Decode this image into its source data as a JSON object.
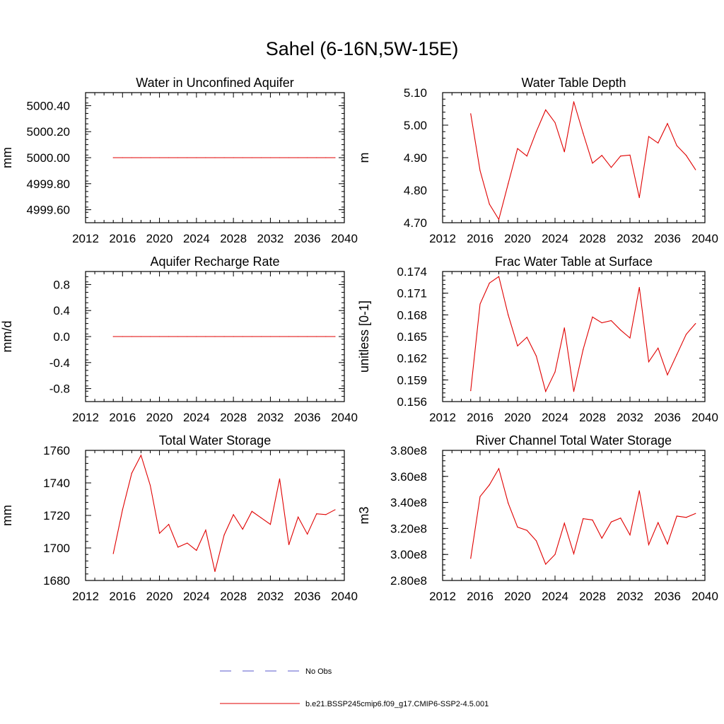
{
  "figure": {
    "title": "Sahel (6-16N,5W-15E)"
  },
  "legend": {
    "items": [
      {
        "label": "No Obs",
        "color": "#5a5acc",
        "dash": true
      },
      {
        "label": "b.e21.BSSP245cmip6.f09_g17.CMIP6-SSP2-4.5.001",
        "color": "#e00000",
        "dash": false
      }
    ]
  },
  "chart_data": [
    {
      "type": "line",
      "title": "Water in Unconfined Aquifer",
      "ylabel": "mm",
      "xlim": [
        2012,
        2040
      ],
      "ylim": [
        4999.5,
        5000.5
      ],
      "xticks": [
        2012,
        2016,
        2020,
        2024,
        2028,
        2032,
        2036,
        2040
      ],
      "yticks": [
        4999.6,
        4999.8,
        5000.0,
        5000.2,
        5000.4
      ],
      "ytick_labels": [
        "4999.60",
        "4999.80",
        "5000.00",
        "5000.20",
        "5000.40"
      ],
      "series": [
        {
          "color": "#e00000",
          "x": [
            2015,
            2016,
            2017,
            2018,
            2019,
            2020,
            2021,
            2022,
            2023,
            2024,
            2025,
            2026,
            2027,
            2028,
            2029,
            2030,
            2031,
            2032,
            2033,
            2034,
            2035,
            2036,
            2037,
            2038,
            2039
          ],
          "values": [
            5000,
            5000,
            5000,
            5000,
            5000,
            5000,
            5000,
            5000,
            5000,
            5000,
            5000,
            5000,
            5000,
            5000,
            5000,
            5000,
            5000,
            5000,
            5000,
            5000,
            5000,
            5000,
            5000,
            5000,
            5000
          ]
        }
      ]
    },
    {
      "type": "line",
      "title": "Water Table Depth",
      "ylabel": "m",
      "xlim": [
        2012,
        2040
      ],
      "ylim": [
        4.7,
        5.1
      ],
      "xticks": [
        2012,
        2016,
        2020,
        2024,
        2028,
        2032,
        2036,
        2040
      ],
      "yticks": [
        4.7,
        4.8,
        4.9,
        5.0,
        5.1
      ],
      "ytick_labels": [
        "4.70",
        "4.80",
        "4.90",
        "5.00",
        "5.10"
      ],
      "series": [
        {
          "color": "#e00000",
          "x": [
            2015,
            2016,
            2017,
            2018,
            2019,
            2020,
            2021,
            2022,
            2023,
            2024,
            2025,
            2026,
            2027,
            2028,
            2029,
            2030,
            2031,
            2032,
            2033,
            2034,
            2035,
            2036,
            2037,
            2038,
            2039
          ],
          "values": [
            5.035,
            4.86,
            4.757,
            4.71,
            4.82,
            4.928,
            4.905,
            4.98,
            5.047,
            5.008,
            4.918,
            5.072,
            4.975,
            4.883,
            4.907,
            4.87,
            4.905,
            4.908,
            4.777,
            4.965,
            4.945,
            5.005,
            4.937,
            4.907,
            4.863
          ]
        }
      ]
    },
    {
      "type": "line",
      "title": "Aquifer Recharge Rate",
      "ylabel": "mm/d",
      "xlim": [
        2012,
        2040
      ],
      "ylim": [
        -1.0,
        1.0
      ],
      "xticks": [
        2012,
        2016,
        2020,
        2024,
        2028,
        2032,
        2036,
        2040
      ],
      "yticks": [
        -0.8,
        -0.4,
        0.0,
        0.4,
        0.8
      ],
      "ytick_labels": [
        "-0.8",
        "-0.4",
        "0.0",
        "0.4",
        "0.8"
      ],
      "series": [
        {
          "color": "#e00000",
          "x": [
            2015,
            2016,
            2017,
            2018,
            2019,
            2020,
            2021,
            2022,
            2023,
            2024,
            2025,
            2026,
            2027,
            2028,
            2029,
            2030,
            2031,
            2032,
            2033,
            2034,
            2035,
            2036,
            2037,
            2038,
            2039
          ],
          "values": [
            0,
            0,
            0,
            0,
            0,
            0,
            0,
            0,
            0,
            0,
            0,
            0,
            0,
            0,
            0,
            0,
            0,
            0,
            0,
            0,
            0,
            0,
            0,
            0,
            0
          ]
        }
      ]
    },
    {
      "type": "line",
      "title": "Frac Water Table at Surface",
      "ylabel": "unitless [0-1]",
      "xlim": [
        2012,
        2040
      ],
      "ylim": [
        0.156,
        0.174
      ],
      "xticks": [
        2012,
        2016,
        2020,
        2024,
        2028,
        2032,
        2036,
        2040
      ],
      "yticks": [
        0.156,
        0.159,
        0.162,
        0.165,
        0.168,
        0.171,
        0.174
      ],
      "ytick_labels": [
        "0.156",
        "0.159",
        "0.162",
        "0.165",
        "0.168",
        "0.171",
        "0.174"
      ],
      "series": [
        {
          "color": "#e00000",
          "x": [
            2015,
            2016,
            2017,
            2018,
            2019,
            2020,
            2021,
            2022,
            2023,
            2024,
            2025,
            2026,
            2027,
            2028,
            2029,
            2030,
            2031,
            2032,
            2033,
            2034,
            2035,
            2036,
            2037,
            2038,
            2039
          ],
          "values": [
            0.1575,
            0.1695,
            0.1724,
            0.1733,
            0.168,
            0.1637,
            0.1649,
            0.1623,
            0.1574,
            0.1601,
            0.1662,
            0.1574,
            0.1632,
            0.1677,
            0.1669,
            0.1672,
            0.1659,
            0.1648,
            0.1718,
            0.1615,
            0.1634,
            0.1597,
            0.1625,
            0.1653,
            0.1668
          ]
        }
      ]
    },
    {
      "type": "line",
      "title": "Total Water Storage",
      "ylabel": "mm",
      "xlim": [
        2012,
        2040
      ],
      "ylim": [
        1680,
        1760
      ],
      "xticks": [
        2012,
        2016,
        2020,
        2024,
        2028,
        2032,
        2036,
        2040
      ],
      "yticks": [
        1680,
        1700,
        1720,
        1740,
        1760
      ],
      "ytick_labels": [
        "1680",
        "1700",
        "1720",
        "1740",
        "1760"
      ],
      "series": [
        {
          "color": "#e00000",
          "x": [
            2015,
            2016,
            2017,
            2018,
            2019,
            2020,
            2021,
            2022,
            2023,
            2024,
            2025,
            2026,
            2027,
            2028,
            2029,
            2030,
            2031,
            2032,
            2033,
            2034,
            2035,
            2036,
            2037,
            2038,
            2039
          ],
          "values": [
            1696.5,
            1723.5,
            1746,
            1757,
            1738.5,
            1709,
            1714.5,
            1700.5,
            1703,
            1698.5,
            1711,
            1685.5,
            1708,
            1720.5,
            1711.5,
            1722.5,
            1718.5,
            1714.5,
            1742.5,
            1702,
            1719,
            1708.5,
            1721,
            1720.5,
            1723.5
          ]
        }
      ]
    },
    {
      "type": "line",
      "title": "River Channel Total Water Storage",
      "ylabel": "m3",
      "xlim": [
        2012,
        2040
      ],
      "ylim": [
        280000000,
        380000000
      ],
      "xticks": [
        2012,
        2016,
        2020,
        2024,
        2028,
        2032,
        2036,
        2040
      ],
      "yticks": [
        280000000,
        300000000,
        320000000,
        340000000,
        360000000,
        380000000
      ],
      "ytick_labels": [
        "2.80e8",
        "3.00e8",
        "3.20e8",
        "3.40e8",
        "3.60e8",
        "3.80e8"
      ],
      "series": [
        {
          "color": "#e00000",
          "x": [
            2015,
            2016,
            2017,
            2018,
            2019,
            2020,
            2021,
            2022,
            2023,
            2024,
            2025,
            2026,
            2027,
            2028,
            2029,
            2030,
            2031,
            2032,
            2033,
            2034,
            2035,
            2036,
            2037,
            2038,
            2039
          ],
          "values": [
            297000000,
            344500000,
            353500000,
            366000000,
            339500000,
            321000000,
            318500000,
            310500000,
            292500000,
            300000000,
            324000000,
            300500000,
            327500000,
            326500000,
            312500000,
            325000000,
            328000000,
            315000000,
            349000000,
            307500000,
            324500000,
            308000000,
            329500000,
            328500000,
            331500000
          ]
        }
      ]
    }
  ]
}
